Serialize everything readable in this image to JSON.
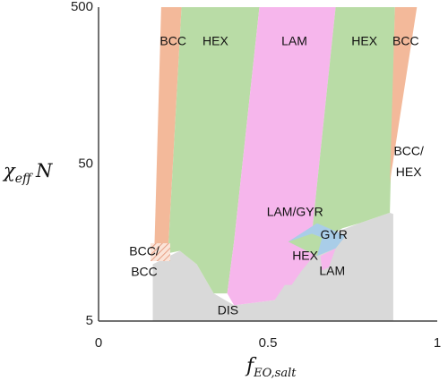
{
  "chart_data": {
    "type": "area",
    "title": "",
    "xlabel_main": "f",
    "xlabel_sub": "EO,salt",
    "ylabel_main": "χ",
    "ylabel_sub": "eff",
    "ylabel_tail": "N",
    "xlim": [
      0,
      1
    ],
    "ylim": [
      5,
      500
    ],
    "yscale": "log",
    "x_ticks": [
      {
        "value": 0,
        "label": "0"
      },
      {
        "value": 0.5,
        "label": "0.5"
      },
      {
        "value": 1,
        "label": "1"
      }
    ],
    "y_ticks": [
      {
        "value": 5,
        "label": "5"
      },
      {
        "value": 50,
        "label": "50"
      },
      {
        "value": 500,
        "label": "500"
      }
    ],
    "grid": false,
    "colors": {
      "BCC": "#f3b99a",
      "HEX": "#b9dca6",
      "LAM": "#f6b6ec",
      "GYR": "#a9cde8",
      "DIS": "#d9d9d9",
      "BCC_hatch": "#e8a085"
    },
    "regions": [
      {
        "phase": "DIS",
        "polygon": [
          [
            0.16,
            5
          ],
          [
            0.16,
            11.5
          ],
          [
            0.24,
            14
          ],
          [
            0.29,
            11.5
          ],
          [
            0.34,
            7.5
          ],
          [
            0.4,
            6.3
          ],
          [
            0.52,
            6.8
          ],
          [
            0.55,
            9.5
          ],
          [
            0.62,
            14
          ],
          [
            0.69,
            18
          ],
          [
            0.77,
            21
          ],
          [
            0.86,
            24.5
          ],
          [
            0.87,
            24
          ],
          [
            0.87,
            5
          ]
        ]
      },
      {
        "phase": "BCC",
        "side": "left",
        "polygon": [
          [
            0.185,
            500
          ],
          [
            0.245,
            500
          ],
          [
            0.205,
            13.5
          ],
          [
            0.165,
            15
          ]
        ]
      },
      {
        "phase": "HEX",
        "side": "left",
        "polygon": [
          [
            0.245,
            500
          ],
          [
            0.475,
            500
          ],
          [
            0.4,
            16
          ],
          [
            0.38,
            7.5
          ],
          [
            0.34,
            7.5
          ],
          [
            0.29,
            11.5
          ],
          [
            0.24,
            14
          ],
          [
            0.205,
            13.5
          ]
        ]
      },
      {
        "phase": "LAM",
        "polygon": [
          [
            0.475,
            500
          ],
          [
            0.7,
            500
          ],
          [
            0.63,
            18
          ],
          [
            0.6,
            16
          ],
          [
            0.6,
            15
          ],
          [
            0.66,
            15
          ],
          [
            0.6,
            10.5
          ],
          [
            0.57,
            8.5
          ],
          [
            0.55,
            8.5
          ],
          [
            0.52,
            6.8
          ],
          [
            0.4,
            6.3
          ],
          [
            0.38,
            7.5
          ],
          [
            0.4,
            16
          ]
        ]
      },
      {
        "phase": "HEX",
        "side": "right",
        "polygon": [
          [
            0.7,
            500
          ],
          [
            0.875,
            500
          ],
          [
            0.86,
            24.5
          ],
          [
            0.77,
            21
          ],
          [
            0.72,
            19.5
          ],
          [
            0.69,
            18
          ],
          [
            0.63,
            18
          ]
        ]
      },
      {
        "phase": "BCC",
        "side": "right",
        "polygon": [
          [
            0.875,
            500
          ],
          [
            0.94,
            500
          ],
          [
            0.865,
            45
          ],
          [
            0.86,
            38
          ]
        ]
      },
      {
        "phase": "GYR",
        "polygon": [
          [
            0.56,
            16
          ],
          [
            0.645,
            21
          ],
          [
            0.73,
            17.5
          ],
          [
            0.7,
            14.5
          ],
          [
            0.645,
            13
          ]
        ]
      },
      {
        "phase": "HEX",
        "side": "center",
        "polygon": [
          [
            0.56,
            16
          ],
          [
            0.63,
            18
          ],
          [
            0.66,
            17
          ],
          [
            0.645,
            13
          ]
        ]
      },
      {
        "phase": "LAM",
        "side": "center",
        "polygon": [
          [
            0.655,
            13
          ],
          [
            0.7,
            14.5
          ],
          [
            0.68,
            11
          ],
          [
            0.66,
            10.5
          ]
        ]
      }
    ],
    "labels": [
      {
        "text": "BCC",
        "x": 0.22,
        "y": 300
      },
      {
        "text": "HEX",
        "x": 0.345,
        "y": 300
      },
      {
        "text": "LAM",
        "x": 0.578,
        "y": 300
      },
      {
        "text": "HEX",
        "x": 0.785,
        "y": 300
      },
      {
        "text": "BCC",
        "x": 0.907,
        "y": 300
      },
      {
        "text": "BCC/",
        "x": 0.916,
        "y": 60
      },
      {
        "text": "HEX",
        "x": 0.916,
        "y": 44
      },
      {
        "text": "LAM/GYR",
        "x": 0.58,
        "y": 24.5
      },
      {
        "text": "GYR",
        "x": 0.695,
        "y": 17.5
      },
      {
        "text": "HEX",
        "x": 0.61,
        "y": 12.9
      },
      {
        "text": "LAM",
        "x": 0.69,
        "y": 10.3
      },
      {
        "text": "BCC/",
        "x": 0.135,
        "y": 13.8
      },
      {
        "text": "BCC",
        "x": 0.135,
        "y": 10.2
      },
      {
        "text": "DIS",
        "x": 0.382,
        "y": 5.8
      }
    ]
  }
}
